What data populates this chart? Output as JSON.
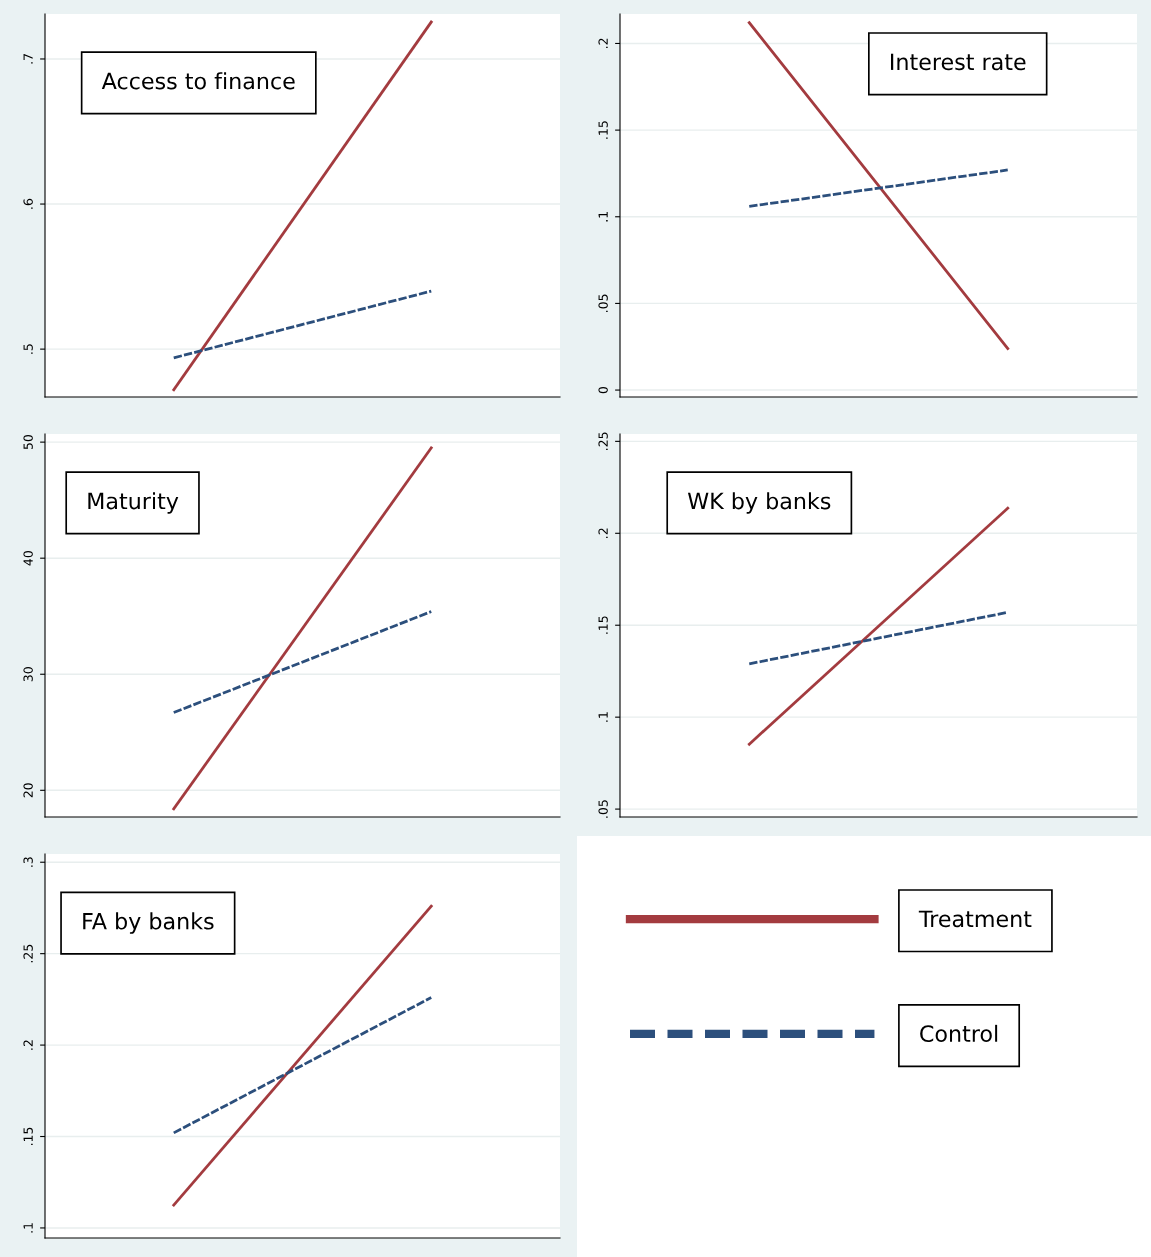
{
  "chart_data": [
    {
      "type": "line",
      "annotations": [
        "Access to finance"
      ],
      "categories": [
        null,
        null
      ],
      "ylim": [
        0.467,
        0.731
      ],
      "yticks": [
        {
          "value": 0.5,
          "label": ".5"
        },
        {
          "value": 0.6,
          "label": ".6"
        },
        {
          "value": 0.7,
          "label": ".7"
        }
      ],
      "grid": "y",
      "tick_labels": "y",
      "series": [
        {
          "color": "#a33b3f",
          "line_style": "solid",
          "values": [
            0.472,
            0.7255
          ]
        },
        {
          "color": "#2c4f7c",
          "line_style": "dashed",
          "values": [
            0.494,
            0.54
          ]
        }
      ]
    },
    {
      "type": "line",
      "annotations": [
        "Interest rate"
      ],
      "categories": [
        null,
        null
      ],
      "ylim": [
        -0.004,
        0.217
      ],
      "yticks": [
        0,
        {
          "value": 0.05,
          "label": ".05"
        },
        {
          "value": 0.1,
          "label": ".1"
        },
        {
          "value": 0.15,
          "label": ".15"
        },
        {
          "value": 0.2,
          "label": ".2"
        }
      ],
      "grid": "y",
      "tick_labels": "y",
      "series": [
        {
          "color": "#a33b3f",
          "line_style": "solid",
          "values": [
            0.212,
            0.024
          ]
        },
        {
          "color": "#2c4f7c",
          "line_style": "dashed",
          "values": [
            0.106,
            0.127
          ]
        }
      ]
    },
    {
      "type": "line",
      "annotations": [
        "Maturity"
      ],
      "categories": [
        null,
        null
      ],
      "ylim": [
        17.7,
        50.7
      ],
      "yticks": [
        20,
        30,
        40,
        50
      ],
      "grid": "y",
      "tick_labels": "y",
      "series": [
        {
          "color": "#a33b3f",
          "line_style": "solid",
          "values": [
            18.4,
            49.5
          ]
        },
        {
          "color": "#2c4f7c",
          "line_style": "dashed",
          "values": [
            26.7,
            35.4
          ]
        }
      ]
    },
    {
      "type": "line",
      "annotations": [
        "WK by banks"
      ],
      "categories": [
        null,
        null
      ],
      "ylim": [
        0.0457,
        0.254
      ],
      "yticks": [
        {
          "value": 0.05,
          "label": ".05"
        },
        {
          "value": 0.1,
          "label": ".1"
        },
        {
          "value": 0.15,
          "label": ".15"
        },
        {
          "value": 0.2,
          "label": ".2"
        },
        {
          "value": 0.25,
          "label": ".25"
        }
      ],
      "grid": "y",
      "tick_labels": "y",
      "series": [
        {
          "color": "#a33b3f",
          "line_style": "solid",
          "values": [
            0.0853,
            0.2136
          ]
        },
        {
          "color": "#2c4f7c",
          "line_style": "dashed",
          "values": [
            0.129,
            0.157
          ]
        }
      ]
    },
    {
      "type": "line",
      "annotations": [
        "FA by banks"
      ],
      "categories": [
        null,
        null
      ],
      "ylim": [
        0.0945,
        0.3045
      ],
      "yticks": [
        {
          "value": 0.1,
          "label": ".1"
        },
        {
          "value": 0.15,
          "label": ".15"
        },
        {
          "value": 0.2,
          "label": ".2"
        },
        {
          "value": 0.25,
          "label": ".25"
        },
        {
          "value": 0.3,
          "label": ".3"
        }
      ],
      "grid": "y",
      "tick_labels": "y",
      "legend": "right",
      "series": [
        {
          "name": "Treatment",
          "color": "#a33b3f",
          "line_style": "solid",
          "values": [
            0.1125,
            0.276
          ]
        },
        {
          "name": "Control",
          "color": "#2c4f7c",
          "line_style": "dashed",
          "values": [
            0.152,
            0.226
          ]
        }
      ]
    }
  ]
}
